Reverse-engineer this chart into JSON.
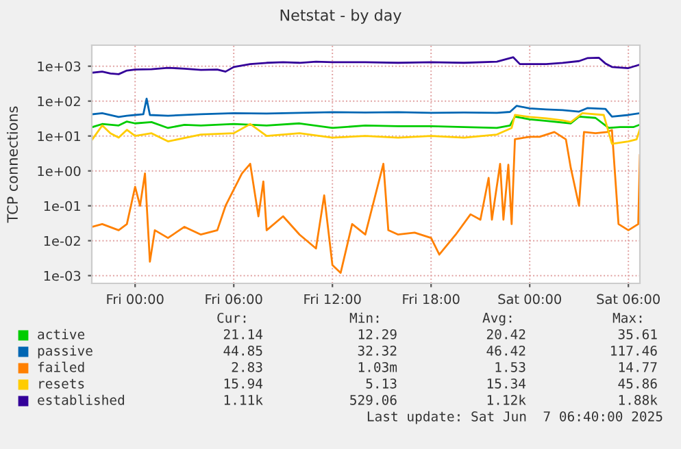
{
  "chart_data": {
    "type": "line",
    "title": "Netstat - by day",
    "ylabel": "TCP connections",
    "log": "y",
    "grid": true,
    "legend": "bottom",
    "xlim": [
      "2025-06-05T21:22",
      "2025-06-07T06:42"
    ],
    "xticks": [
      {
        "value": "2025-06-06T00:00",
        "label": "Fri 00:00"
      },
      {
        "value": "2025-06-06T06:00",
        "label": "Fri 06:00"
      },
      {
        "value": "2025-06-06T12:00",
        "label": "Fri 12:00"
      },
      {
        "value": "2025-06-06T18:00",
        "label": "Fri 18:00"
      },
      {
        "value": "2025-06-07T00:00",
        "label": "Sat 00:00"
      },
      {
        "value": "2025-06-07T06:00",
        "label": "Sat 06:00"
      }
    ],
    "ylim": [
      0.0006,
      4000
    ],
    "yticks": [
      {
        "value": 0.001,
        "label": "1e-03"
      },
      {
        "value": 0.01,
        "label": "1e-02"
      },
      {
        "value": 0.1,
        "label": "1e-01"
      },
      {
        "value": 1,
        "label": "1e+00"
      },
      {
        "value": 10,
        "label": "1e+01"
      },
      {
        "value": 100,
        "label": "1e+02"
      },
      {
        "value": 1000,
        "label": "1e+03"
      }
    ],
    "series": [
      {
        "name": "active",
        "color": "#00cc00",
        "x": [
          "2025-06-05T21:24",
          "2025-06-05T22:00",
          "2025-06-05T23:00",
          "2025-06-05T23:30",
          "2025-06-06T00:00",
          "2025-06-06T01:00",
          "2025-06-06T02:00",
          "2025-06-06T03:00",
          "2025-06-06T04:00",
          "2025-06-06T06:00",
          "2025-06-06T08:00",
          "2025-06-06T10:00",
          "2025-06-06T12:00",
          "2025-06-06T14:00",
          "2025-06-06T16:00",
          "2025-06-06T18:00",
          "2025-06-06T20:00",
          "2025-06-06T22:00",
          "2025-06-06T22:48",
          "2025-06-06T23:06",
          "2025-06-07T00:00",
          "2025-06-07T01:00",
          "2025-06-07T02:30",
          "2025-06-07T03:00",
          "2025-06-07T04:00",
          "2025-06-07T04:48",
          "2025-06-07T05:30",
          "2025-06-07T06:18",
          "2025-06-07T06:42"
        ],
        "values": [
          18,
          22,
          20,
          26,
          23,
          25,
          17,
          21,
          20,
          22,
          20,
          23,
          17,
          20,
          19,
          19,
          18,
          17,
          20,
          36,
          30,
          27,
          23,
          36,
          33,
          17,
          18,
          18,
          21.14
        ]
      },
      {
        "name": "passive",
        "color": "#0066b3",
        "x": [
          "2025-06-05T21:24",
          "2025-06-05T22:00",
          "2025-06-05T23:00",
          "2025-06-05T23:30",
          "2025-06-06T00:00",
          "2025-06-06T00:30",
          "2025-06-06T00:42",
          "2025-06-06T00:54",
          "2025-06-06T02:00",
          "2025-06-06T04:00",
          "2025-06-06T06:00",
          "2025-06-06T08:00",
          "2025-06-06T10:00",
          "2025-06-06T12:00",
          "2025-06-06T14:00",
          "2025-06-06T16:00",
          "2025-06-06T18:00",
          "2025-06-06T20:00",
          "2025-06-06T22:00",
          "2025-06-06T22:48",
          "2025-06-06T23:12",
          "2025-06-07T00:00",
          "2025-06-07T01:00",
          "2025-06-07T02:00",
          "2025-06-07T03:00",
          "2025-06-07T03:30",
          "2025-06-07T04:36",
          "2025-06-07T05:00",
          "2025-06-07T06:00",
          "2025-06-07T06:42"
        ],
        "values": [
          42,
          45,
          35,
          38,
          40,
          42,
          117.46,
          40,
          38,
          42,
          45,
          44,
          46,
          48,
          47,
          48,
          46,
          47,
          46,
          49,
          73,
          62,
          58,
          55,
          50,
          63,
          60,
          36,
          40,
          44.85
        ]
      },
      {
        "name": "failed",
        "color": "#ff8000",
        "x": [
          "2025-06-05T21:24",
          "2025-06-05T22:00",
          "2025-06-05T23:00",
          "2025-06-05T23:30",
          "2025-06-06T00:00",
          "2025-06-06T00:18",
          "2025-06-06T00:36",
          "2025-06-06T00:54",
          "2025-06-06T01:12",
          "2025-06-06T02:00",
          "2025-06-06T03:00",
          "2025-06-06T04:00",
          "2025-06-06T05:00",
          "2025-06-06T05:30",
          "2025-06-06T06:30",
          "2025-06-06T07:00",
          "2025-06-06T07:30",
          "2025-06-06T07:48",
          "2025-06-06T08:00",
          "2025-06-06T09:00",
          "2025-06-06T10:00",
          "2025-06-06T11:00",
          "2025-06-06T11:30",
          "2025-06-06T12:00",
          "2025-06-06T12:30",
          "2025-06-06T13:12",
          "2025-06-06T14:00",
          "2025-06-06T15:06",
          "2025-06-06T15:24",
          "2025-06-06T16:00",
          "2025-06-06T17:00",
          "2025-06-06T18:00",
          "2025-06-06T18:30",
          "2025-06-06T19:30",
          "2025-06-06T20:24",
          "2025-06-06T21:00",
          "2025-06-06T21:30",
          "2025-06-06T21:42",
          "2025-06-06T22:12",
          "2025-06-06T22:24",
          "2025-06-06T22:42",
          "2025-06-06T22:54",
          "2025-06-06T23:06",
          "2025-06-07T00:00",
          "2025-06-07T00:36",
          "2025-06-07T01:30",
          "2025-06-07T02:12",
          "2025-06-07T02:30",
          "2025-06-07T03:00",
          "2025-06-07T03:18",
          "2025-06-07T04:00",
          "2025-06-07T04:42",
          "2025-06-07T05:00",
          "2025-06-07T05:24",
          "2025-06-07T06:00",
          "2025-06-07T06:36",
          "2025-06-07T06:42"
        ],
        "values": [
          0.025,
          0.03,
          0.02,
          0.03,
          0.35,
          0.1,
          0.85,
          0.0025,
          0.02,
          0.012,
          0.025,
          0.015,
          0.02,
          0.1,
          0.85,
          1.6,
          0.05,
          0.5,
          0.02,
          0.05,
          0.015,
          0.006,
          0.2,
          0.002,
          0.0012,
          0.03,
          0.015,
          1.6,
          0.02,
          0.015,
          0.017,
          0.012,
          0.004,
          0.015,
          0.057,
          0.04,
          0.63,
          0.04,
          1.6,
          0.04,
          1.5,
          0.03,
          8.1,
          9.5,
          9.5,
          13,
          8,
          1.2,
          0.1,
          13,
          12,
          13,
          14.77,
          0.03,
          0.02,
          0.03,
          2.83
        ]
      },
      {
        "name": "resets",
        "color": "#ffcc00",
        "x": [
          "2025-06-05T21:24",
          "2025-06-05T22:00",
          "2025-06-05T22:30",
          "2025-06-05T23:00",
          "2025-06-05T23:30",
          "2025-06-06T00:00",
          "2025-06-06T01:00",
          "2025-06-06T02:00",
          "2025-06-06T04:00",
          "2025-06-06T06:00",
          "2025-06-06T07:00",
          "2025-06-06T08:00",
          "2025-06-06T10:00",
          "2025-06-06T12:00",
          "2025-06-06T14:00",
          "2025-06-06T16:00",
          "2025-06-06T18:00",
          "2025-06-06T20:00",
          "2025-06-06T22:00",
          "2025-06-06T22:54",
          "2025-06-06T23:06",
          "2025-06-07T00:00",
          "2025-06-07T01:00",
          "2025-06-07T02:00",
          "2025-06-07T02:30",
          "2025-06-07T03:12",
          "2025-06-07T04:30",
          "2025-06-07T05:00",
          "2025-06-07T06:00",
          "2025-06-07T06:30",
          "2025-06-07T06:42"
        ],
        "values": [
          8,
          20,
          12,
          9,
          15,
          10,
          12,
          7,
          11,
          12,
          22,
          10,
          12,
          9,
          10,
          9,
          10,
          9,
          11,
          17,
          40,
          35,
          32,
          28,
          25,
          45,
          40,
          6,
          7,
          8,
          15.94
        ]
      },
      {
        "name": "established",
        "color": "#330099",
        "x": [
          "2025-06-05T21:24",
          "2025-06-05T22:00",
          "2025-06-05T22:30",
          "2025-06-05T23:00",
          "2025-06-05T23:30",
          "2025-06-06T00:00",
          "2025-06-06T01:00",
          "2025-06-06T02:00",
          "2025-06-06T03:00",
          "2025-06-06T04:00",
          "2025-06-06T05:00",
          "2025-06-06T05:30",
          "2025-06-06T06:00",
          "2025-06-06T07:00",
          "2025-06-06T08:00",
          "2025-06-06T09:00",
          "2025-06-06T10:00",
          "2025-06-06T11:00",
          "2025-06-06T12:00",
          "2025-06-06T14:00",
          "2025-06-06T16:00",
          "2025-06-06T18:00",
          "2025-06-06T20:00",
          "2025-06-06T22:00",
          "2025-06-06T23:00",
          "2025-06-06T23:24",
          "2025-06-07T00:00",
          "2025-06-07T01:00",
          "2025-06-07T02:00",
          "2025-06-07T03:00",
          "2025-06-07T03:30",
          "2025-06-07T04:12",
          "2025-06-07T04:36",
          "2025-06-07T05:00",
          "2025-06-07T06:00",
          "2025-06-07T06:42"
        ],
        "values": [
          650,
          700,
          620,
          590,
          750,
          800,
          820,
          900,
          850,
          780,
          800,
          700,
          950,
          1150,
          1250,
          1300,
          1250,
          1350,
          1300,
          1300,
          1250,
          1300,
          1250,
          1350,
          1800,
          1150,
          1150,
          1150,
          1250,
          1400,
          1700,
          1750,
          1200,
          950,
          880,
          1110
        ]
      }
    ],
    "annotations": [
      "Cur:",
      "Min:",
      "Avg:",
      "Max:",
      "21.14",
      "12.29",
      "20.42",
      "35.61",
      "44.85",
      "32.32",
      "46.42",
      "117.46",
      "2.83",
      "1.03m",
      "1.53",
      "14.77",
      "15.94",
      "5.13",
      "15.34",
      "45.86",
      "1.11k",
      "529.06",
      "1.12k",
      "1.88k",
      "Last update: Sat Jun  7 06:40:00 2025"
    ]
  }
}
